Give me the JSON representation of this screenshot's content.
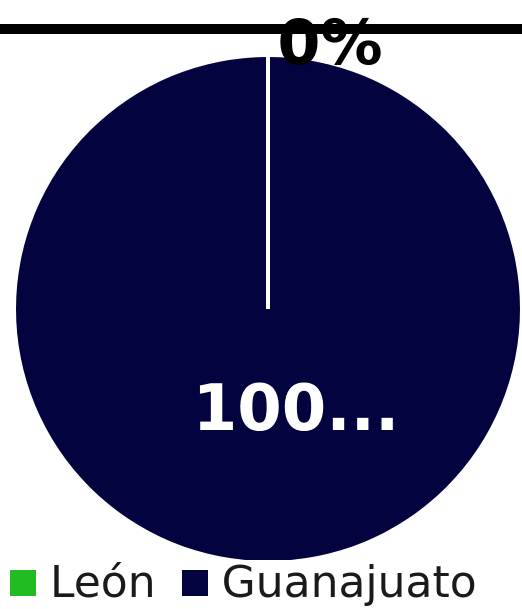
{
  "chart_data": {
    "type": "pie",
    "categories": [
      "León",
      "Guanajuato"
    ],
    "values": [
      0,
      100
    ],
    "data_labels": [
      "0%",
      "100..."
    ],
    "colors": [
      "#22bb22",
      "#03033f"
    ],
    "legend": "bottom"
  }
}
